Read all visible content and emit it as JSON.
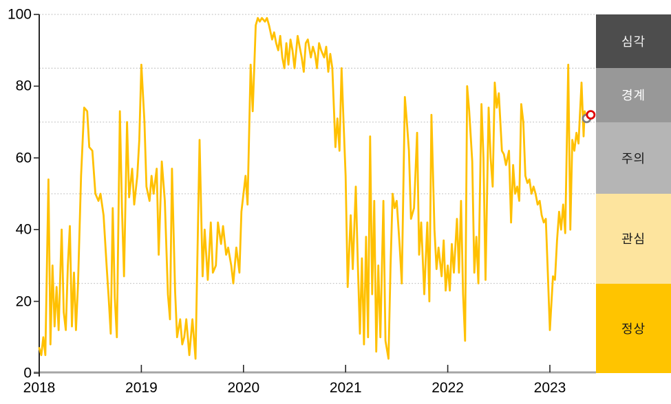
{
  "chart_data": {
    "type": "line",
    "title": "",
    "xlabel": "",
    "ylabel": "",
    "xlim": [
      2018,
      2023.55
    ],
    "ylim": [
      0,
      100
    ],
    "x_ticks": [
      "2018",
      "2019",
      "2020",
      "2021",
      "2022",
      "2023"
    ],
    "x_tick_years": [
      2018,
      2019,
      2020,
      2021,
      2022,
      2023
    ],
    "y_ticks": [
      "0",
      "20",
      "40",
      "60",
      "80",
      "100"
    ],
    "y_tick_values": [
      0,
      20,
      40,
      60,
      80,
      100
    ],
    "gridline_values": [
      25,
      50,
      70,
      85,
      100
    ],
    "grid_style": "dotted",
    "legend_position": "right-band-strip",
    "series": [
      {
        "name": "risk-index",
        "color": "#FFC000",
        "points": [
          [
            2018.0,
            7
          ],
          [
            2018.02,
            5
          ],
          [
            2018.04,
            10
          ],
          [
            2018.06,
            5
          ],
          [
            2018.09,
            54
          ],
          [
            2018.11,
            8
          ],
          [
            2018.13,
            30
          ],
          [
            2018.15,
            13
          ],
          [
            2018.17,
            24
          ],
          [
            2018.19,
            12
          ],
          [
            2018.22,
            40
          ],
          [
            2018.24,
            17
          ],
          [
            2018.26,
            12
          ],
          [
            2018.28,
            30
          ],
          [
            2018.3,
            41
          ],
          [
            2018.32,
            13
          ],
          [
            2018.34,
            28
          ],
          [
            2018.36,
            12
          ],
          [
            2018.38,
            25
          ],
          [
            2018.41,
            55
          ],
          [
            2018.44,
            74
          ],
          [
            2018.47,
            73
          ],
          [
            2018.49,
            63
          ],
          [
            2018.52,
            62
          ],
          [
            2018.55,
            50
          ],
          [
            2018.58,
            48
          ],
          [
            2018.6,
            50
          ],
          [
            2018.63,
            44
          ],
          [
            2018.66,
            30
          ],
          [
            2018.68,
            21
          ],
          [
            2018.7,
            11
          ],
          [
            2018.72,
            46
          ],
          [
            2018.74,
            21
          ],
          [
            2018.76,
            10
          ],
          [
            2018.79,
            73
          ],
          [
            2018.81,
            46
          ],
          [
            2018.83,
            27
          ],
          [
            2018.86,
            70
          ],
          [
            2018.88,
            49
          ],
          [
            2018.91,
            57
          ],
          [
            2018.93,
            47
          ],
          [
            2018.96,
            55
          ],
          [
            2018.98,
            65
          ],
          [
            2019.0,
            86
          ],
          [
            2019.03,
            70
          ],
          [
            2019.05,
            52
          ],
          [
            2019.08,
            48
          ],
          [
            2019.1,
            55
          ],
          [
            2019.12,
            50
          ],
          [
            2019.15,
            57
          ],
          [
            2019.17,
            33
          ],
          [
            2019.2,
            59
          ],
          [
            2019.23,
            48
          ],
          [
            2019.26,
            22
          ],
          [
            2019.28,
            15
          ],
          [
            2019.3,
            57
          ],
          [
            2019.33,
            23
          ],
          [
            2019.35,
            10
          ],
          [
            2019.38,
            15
          ],
          [
            2019.4,
            8
          ],
          [
            2019.42,
            10
          ],
          [
            2019.44,
            15
          ],
          [
            2019.47,
            5
          ],
          [
            2019.5,
            15
          ],
          [
            2019.53,
            4
          ],
          [
            2019.57,
            65
          ],
          [
            2019.6,
            27
          ],
          [
            2019.62,
            40
          ],
          [
            2019.65,
            26
          ],
          [
            2019.68,
            42
          ],
          [
            2019.7,
            28
          ],
          [
            2019.73,
            30
          ],
          [
            2019.75,
            42
          ],
          [
            2019.78,
            36
          ],
          [
            2019.8,
            41
          ],
          [
            2019.83,
            33
          ],
          [
            2019.85,
            35
          ],
          [
            2019.88,
            30
          ],
          [
            2019.9,
            25
          ],
          [
            2019.93,
            35
          ],
          [
            2019.96,
            28
          ],
          [
            2019.98,
            45
          ],
          [
            2020.0,
            50
          ],
          [
            2020.02,
            55
          ],
          [
            2020.04,
            47
          ],
          [
            2020.07,
            86
          ],
          [
            2020.09,
            73
          ],
          [
            2020.12,
            97
          ],
          [
            2020.14,
            99
          ],
          [
            2020.16,
            98
          ],
          [
            2020.18,
            99
          ],
          [
            2020.21,
            98
          ],
          [
            2020.23,
            99
          ],
          [
            2020.25,
            97
          ],
          [
            2020.28,
            93
          ],
          [
            2020.3,
            95
          ],
          [
            2020.32,
            92
          ],
          [
            2020.34,
            90
          ],
          [
            2020.36,
            94
          ],
          [
            2020.38,
            88
          ],
          [
            2020.4,
            85
          ],
          [
            2020.42,
            92
          ],
          [
            2020.44,
            86
          ],
          [
            2020.46,
            93
          ],
          [
            2020.48,
            90
          ],
          [
            2020.5,
            85
          ],
          [
            2020.53,
            94
          ],
          [
            2020.55,
            91
          ],
          [
            2020.57,
            88
          ],
          [
            2020.59,
            84
          ],
          [
            2020.61,
            92
          ],
          [
            2020.63,
            93
          ],
          [
            2020.66,
            88
          ],
          [
            2020.68,
            91
          ],
          [
            2020.7,
            89
          ],
          [
            2020.72,
            85
          ],
          [
            2020.74,
            92
          ],
          [
            2020.76,
            90
          ],
          [
            2020.79,
            88
          ],
          [
            2020.81,
            91
          ],
          [
            2020.83,
            84
          ],
          [
            2020.85,
            89
          ],
          [
            2020.87,
            85
          ],
          [
            2020.9,
            63
          ],
          [
            2020.92,
            71
          ],
          [
            2020.94,
            62
          ],
          [
            2020.96,
            85
          ],
          [
            2020.98,
            70
          ],
          [
            2021.0,
            55
          ],
          [
            2021.02,
            24
          ],
          [
            2021.05,
            44
          ],
          [
            2021.07,
            29
          ],
          [
            2021.1,
            52
          ],
          [
            2021.12,
            30
          ],
          [
            2021.14,
            11
          ],
          [
            2021.16,
            32
          ],
          [
            2021.18,
            8
          ],
          [
            2021.2,
            38
          ],
          [
            2021.22,
            10
          ],
          [
            2021.24,
            66
          ],
          [
            2021.26,
            22
          ],
          [
            2021.28,
            48
          ],
          [
            2021.3,
            6
          ],
          [
            2021.32,
            30
          ],
          [
            2021.34,
            10
          ],
          [
            2021.37,
            48
          ],
          [
            2021.39,
            9
          ],
          [
            2021.42,
            4
          ],
          [
            2021.44,
            30
          ],
          [
            2021.46,
            50
          ],
          [
            2021.48,
            46
          ],
          [
            2021.5,
            48
          ],
          [
            2021.53,
            35
          ],
          [
            2021.55,
            25
          ],
          [
            2021.58,
            77
          ],
          [
            2021.6,
            70
          ],
          [
            2021.62,
            62
          ],
          [
            2021.64,
            43
          ],
          [
            2021.67,
            46
          ],
          [
            2021.7,
            67
          ],
          [
            2021.72,
            33
          ],
          [
            2021.74,
            42
          ],
          [
            2021.77,
            22
          ],
          [
            2021.8,
            42
          ],
          [
            2021.82,
            20
          ],
          [
            2021.84,
            72
          ],
          [
            2021.87,
            40
          ],
          [
            2021.89,
            29
          ],
          [
            2021.91,
            35
          ],
          [
            2021.94,
            27
          ],
          [
            2021.96,
            37
          ],
          [
            2021.98,
            23
          ],
          [
            2022.0,
            30
          ],
          [
            2022.02,
            23
          ],
          [
            2022.04,
            36
          ],
          [
            2022.06,
            28
          ],
          [
            2022.09,
            43
          ],
          [
            2022.11,
            28
          ],
          [
            2022.13,
            48
          ],
          [
            2022.15,
            22
          ],
          [
            2022.17,
            9
          ],
          [
            2022.19,
            80
          ],
          [
            2022.21,
            73
          ],
          [
            2022.24,
            59
          ],
          [
            2022.26,
            28
          ],
          [
            2022.28,
            38
          ],
          [
            2022.3,
            25
          ],
          [
            2022.33,
            75
          ],
          [
            2022.35,
            60
          ],
          [
            2022.37,
            26
          ],
          [
            2022.4,
            74
          ],
          [
            2022.42,
            60
          ],
          [
            2022.44,
            52
          ],
          [
            2022.46,
            81
          ],
          [
            2022.48,
            74
          ],
          [
            2022.5,
            78
          ],
          [
            2022.53,
            62
          ],
          [
            2022.55,
            61
          ],
          [
            2022.57,
            58
          ],
          [
            2022.6,
            62
          ],
          [
            2022.62,
            42
          ],
          [
            2022.64,
            58
          ],
          [
            2022.66,
            50
          ],
          [
            2022.68,
            52
          ],
          [
            2022.7,
            48
          ],
          [
            2022.72,
            75
          ],
          [
            2022.74,
            70
          ],
          [
            2022.76,
            55
          ],
          [
            2022.78,
            53
          ],
          [
            2022.8,
            54
          ],
          [
            2022.82,
            50
          ],
          [
            2022.84,
            52
          ],
          [
            2022.86,
            50
          ],
          [
            2022.88,
            47
          ],
          [
            2022.9,
            48
          ],
          [
            2022.92,
            44
          ],
          [
            2022.94,
            42
          ],
          [
            2022.96,
            43
          ],
          [
            2022.98,
            28
          ],
          [
            2023.0,
            12
          ],
          [
            2023.03,
            27
          ],
          [
            2023.05,
            26
          ],
          [
            2023.07,
            37
          ],
          [
            2023.09,
            45
          ],
          [
            2023.11,
            40
          ],
          [
            2023.13,
            47
          ],
          [
            2023.15,
            39
          ],
          [
            2023.18,
            86
          ],
          [
            2023.2,
            40
          ],
          [
            2023.22,
            65
          ],
          [
            2023.24,
            62
          ],
          [
            2023.26,
            67
          ],
          [
            2023.28,
            64
          ],
          [
            2023.31,
            81
          ],
          [
            2023.33,
            66
          ],
          [
            2023.34,
            73
          ],
          [
            2023.36,
            71
          ]
        ]
      }
    ],
    "end_markers": [
      {
        "name": "previous-point-marker",
        "x": 2023.36,
        "value": 71,
        "ring_color": "#7F7F7F",
        "fill": "#FFFFFF"
      },
      {
        "name": "latest-point-marker",
        "x": 2023.4,
        "value": 72,
        "ring_color": "#E00000",
        "fill": "#FFFFFF"
      }
    ],
    "legend_zones": [
      {
        "label": "심각",
        "range": [
          85,
          100
        ],
        "color": "#4D4D4D",
        "text_color": "#F2F2F2"
      },
      {
        "label": "경계",
        "range": [
          70,
          85
        ],
        "color": "#989898",
        "text_color": "#FFFFFF"
      },
      {
        "label": "주의",
        "range": [
          50,
          70
        ],
        "color": "#B5B5B5",
        "text_color": "#1A1A1A"
      },
      {
        "label": "관심",
        "range": [
          25,
          50
        ],
        "color": "#FDE49E",
        "text_color": "#1A1A1A"
      },
      {
        "label": "정상",
        "range": [
          0,
          25
        ],
        "color": "#FFC400",
        "text_color": "#1A1A1A"
      }
    ],
    "colors": {
      "line": "#FFC000",
      "gridline": "#C8C8C8",
      "x_axis": "#A6A6A6",
      "y_axis": "#262626",
      "tick_text": "#000000"
    }
  }
}
